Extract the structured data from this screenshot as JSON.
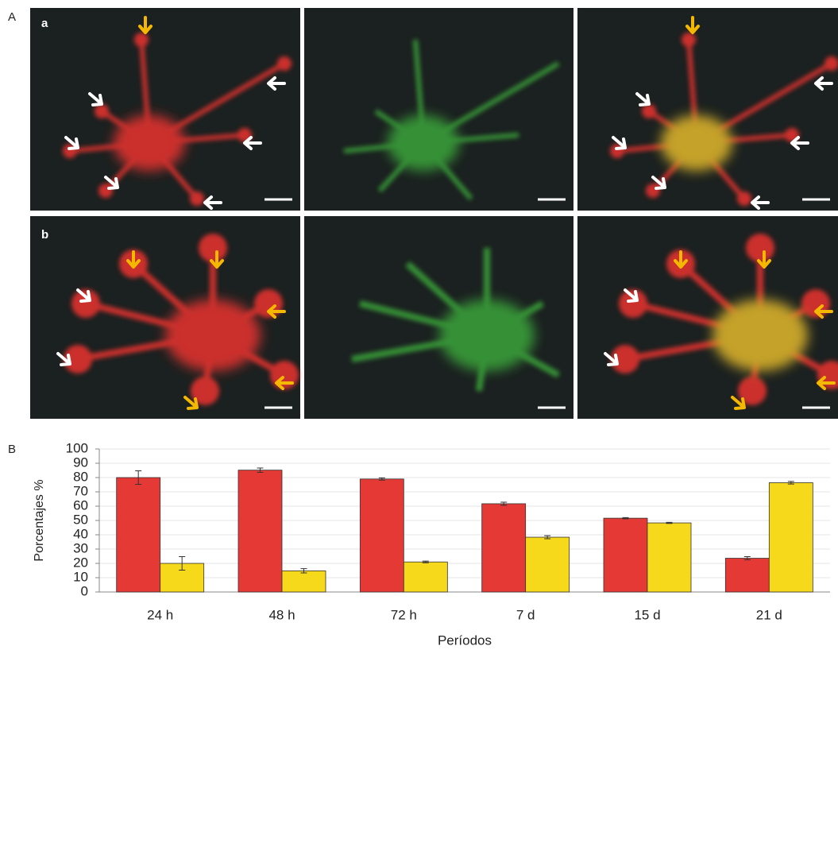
{
  "panel_labels": {
    "A": "A",
    "a": "a",
    "b": "b",
    "B": "B"
  },
  "chart_data": {
    "type": "bar",
    "y_label": "Porcentajes %",
    "x_label": "Períodos",
    "categories": [
      "24 h",
      "48 h",
      "72 h",
      "7 d",
      "15 d",
      "21 d"
    ],
    "series": [
      {
        "color": "#e53935",
        "values": [
          80,
          85.2,
          79,
          61.7,
          51.6,
          23.6
        ],
        "errors": [
          4.7,
          1.5,
          0.8,
          1.1,
          0.4,
          1.1
        ]
      },
      {
        "color": "#f7d91c",
        "values": [
          20,
          14.8,
          21,
          38.3,
          48.3,
          76.4
        ],
        "errors": [
          4.7,
          1.5,
          0.6,
          1.1,
          0.4,
          0.9
        ]
      }
    ],
    "ylim": [
      0,
      100
    ],
    "yticks": [
      0,
      10,
      20,
      30,
      40,
      50,
      60,
      70,
      80,
      90,
      100
    ],
    "grid": true
  }
}
